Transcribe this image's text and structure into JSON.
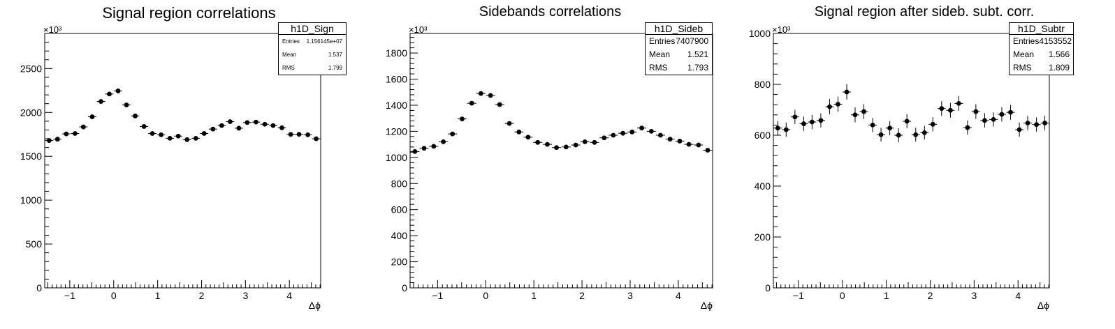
{
  "chart_data": [
    {
      "type": "scatter",
      "title": "Signal region correlations",
      "xlabel": "Δϕ",
      "ylabel": "",
      "y_multiplier_label": "×10³",
      "xlim": [
        -1.5708,
        4.7124
      ],
      "ylim": [
        0,
        2900
      ],
      "x_ticks": [
        -1,
        0,
        1,
        2,
        3,
        4
      ],
      "y_ticks": [
        0,
        500,
        1000,
        1500,
        2000,
        2500
      ],
      "grid": false,
      "stats": {
        "name": "h1D_Sign",
        "rows": [
          {
            "label": "Entries",
            "value": "1.156145e+07"
          },
          {
            "label": "Mean",
            "value": "1.537"
          },
          {
            "label": "RMS",
            "value": "1.799"
          }
        ]
      },
      "x": [
        -1.47,
        -1.28,
        -1.08,
        -0.88,
        -0.69,
        -0.49,
        -0.29,
        -0.1,
        0.1,
        0.29,
        0.49,
        0.69,
        0.88,
        1.08,
        1.28,
        1.47,
        1.67,
        1.87,
        2.06,
        2.26,
        2.46,
        2.65,
        2.85,
        3.04,
        3.24,
        3.44,
        3.63,
        3.83,
        4.03,
        4.22,
        4.42,
        4.61
      ],
      "values": [
        1680,
        1695,
        1755,
        1760,
        1835,
        1950,
        2125,
        2210,
        2245,
        2085,
        1960,
        1840,
        1760,
        1745,
        1705,
        1730,
        1690,
        1705,
        1760,
        1810,
        1850,
        1895,
        1820,
        1885,
        1890,
        1865,
        1850,
        1825,
        1750,
        1750,
        1745,
        1700
      ],
      "errors": [
        18,
        18,
        19,
        19,
        19,
        20,
        21,
        21,
        21,
        21,
        20,
        19,
        19,
        19,
        18,
        18,
        18,
        18,
        19,
        19,
        19,
        19,
        19,
        19,
        19,
        19,
        19,
        19,
        19,
        19,
        19,
        18
      ]
    },
    {
      "type": "scatter",
      "title": "Sidebands correlations",
      "xlabel": "Δϕ",
      "ylabel": "",
      "y_multiplier_label": "×10³",
      "xlim": [
        -1.5708,
        4.7124
      ],
      "ylim": [
        0,
        1950
      ],
      "x_ticks": [
        -1,
        0,
        1,
        2,
        3,
        4
      ],
      "y_ticks": [
        0,
        200,
        400,
        600,
        800,
        1000,
        1200,
        1400,
        1600,
        1800
      ],
      "grid": false,
      "stats": {
        "name": "h1D_Sideb",
        "rows": [
          {
            "label": "Entries",
            "value": "7407900"
          },
          {
            "label": "Mean",
            "value": "1.521"
          },
          {
            "label": "RMS",
            "value": "1.793"
          }
        ]
      },
      "x": [
        -1.47,
        -1.28,
        -1.08,
        -0.88,
        -0.69,
        -0.49,
        -0.29,
        -0.1,
        0.1,
        0.29,
        0.49,
        0.69,
        0.88,
        1.08,
        1.28,
        1.47,
        1.67,
        1.87,
        2.06,
        2.26,
        2.46,
        2.65,
        2.85,
        3.04,
        3.24,
        3.44,
        3.63,
        3.83,
        4.03,
        4.22,
        4.42,
        4.61
      ],
      "values": [
        1045,
        1070,
        1085,
        1120,
        1180,
        1295,
        1415,
        1490,
        1475,
        1405,
        1260,
        1195,
        1155,
        1115,
        1100,
        1075,
        1080,
        1095,
        1120,
        1115,
        1150,
        1170,
        1185,
        1195,
        1225,
        1200,
        1170,
        1140,
        1125,
        1100,
        1095,
        1055
      ],
      "errors": [
        14,
        14,
        14,
        14,
        15,
        15,
        16,
        16,
        16,
        16,
        15,
        15,
        15,
        14,
        14,
        14,
        14,
        14,
        14,
        14,
        15,
        15,
        15,
        15,
        15,
        15,
        15,
        14,
        14,
        14,
        14,
        14
      ]
    },
    {
      "type": "scatter",
      "title": "Signal region after sideb. subt. corr.",
      "xlabel": "Δϕ",
      "ylabel": "",
      "y_multiplier_label": "×10³",
      "xlim": [
        -1.5708,
        4.7124
      ],
      "ylim": [
        0,
        1000
      ],
      "x_ticks": [
        -1,
        0,
        1,
        2,
        3,
        4
      ],
      "y_ticks": [
        0,
        200,
        400,
        600,
        800,
        1000
      ],
      "grid": false,
      "stats": {
        "name": "h1D_Subtr",
        "rows": [
          {
            "label": "Entries",
            "value": "4153552"
          },
          {
            "label": "Mean",
            "value": "1.566"
          },
          {
            "label": "RMS",
            "value": "1.809"
          }
        ]
      },
      "x": [
        -1.47,
        -1.28,
        -1.08,
        -0.88,
        -0.69,
        -0.49,
        -0.29,
        -0.1,
        0.1,
        0.29,
        0.49,
        0.69,
        0.88,
        1.08,
        1.28,
        1.47,
        1.67,
        1.87,
        2.06,
        2.26,
        2.46,
        2.65,
        2.85,
        3.04,
        3.24,
        3.44,
        3.63,
        3.83,
        4.03,
        4.22,
        4.42,
        4.61
      ],
      "values": [
        628,
        622,
        672,
        645,
        652,
        658,
        712,
        722,
        770,
        680,
        693,
        640,
        602,
        628,
        600,
        655,
        602,
        610,
        643,
        705,
        698,
        725,
        630,
        693,
        658,
        662,
        682,
        690,
        622,
        648,
        642,
        648
      ],
      "errors": [
        28,
        28,
        28,
        28,
        28,
        28,
        30,
        30,
        30,
        29,
        29,
        28,
        27,
        28,
        27,
        28,
        27,
        27,
        28,
        29,
        29,
        29,
        28,
        29,
        28,
        28,
        28,
        29,
        28,
        28,
        28,
        28
      ]
    }
  ]
}
